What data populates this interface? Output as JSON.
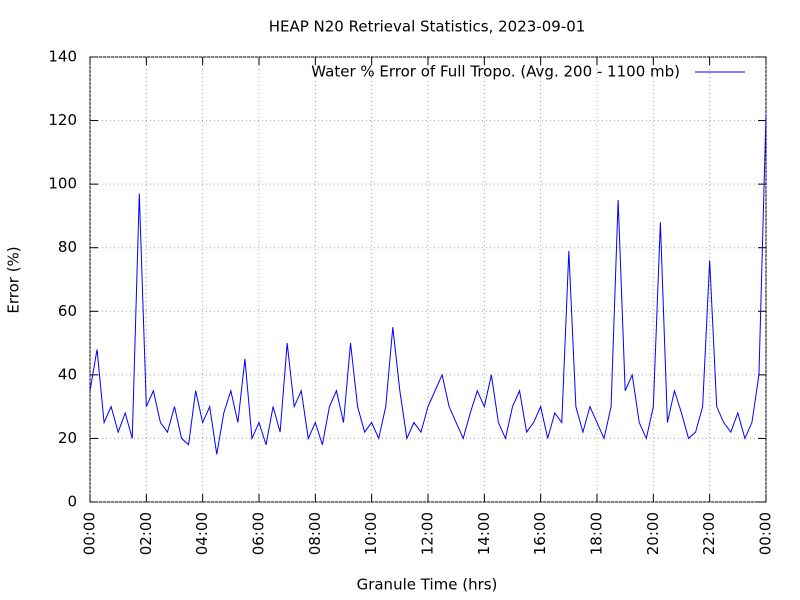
{
  "chart_data": {
    "type": "line",
    "title": "HEAP N20 Retrieval Statistics, 2023-09-01",
    "x_label": "Granule Time (hrs)",
    "y_label": "Error (%)",
    "legend": "top-right",
    "grid": true,
    "xlim": [
      0,
      24
    ],
    "ylim": [
      0,
      140
    ],
    "yticks": [
      0,
      20,
      40,
      60,
      80,
      100,
      120,
      140
    ],
    "xticks": [
      {
        "value": 0,
        "label": "00:00"
      },
      {
        "value": 2,
        "label": "02:00"
      },
      {
        "value": 4,
        "label": "04:00"
      },
      {
        "value": 6,
        "label": "06:00"
      },
      {
        "value": 8,
        "label": "08:00"
      },
      {
        "value": 10,
        "label": "10:00"
      },
      {
        "value": 12,
        "label": "12:00"
      },
      {
        "value": 14,
        "label": "14:00"
      },
      {
        "value": 16,
        "label": "16:00"
      },
      {
        "value": 18,
        "label": "18:00"
      },
      {
        "value": 20,
        "label": "20:00"
      },
      {
        "value": 22,
        "label": "22:00"
      },
      {
        "value": 24,
        "label": "00:00"
      }
    ],
    "x": [
      0,
      0.25,
      0.5,
      0.75,
      1,
      1.25,
      1.5,
      1.75,
      2,
      2.25,
      2.5,
      2.75,
      3,
      3.25,
      3.5,
      3.75,
      4,
      4.25,
      4.5,
      4.75,
      5,
      5.25,
      5.5,
      5.75,
      6,
      6.25,
      6.5,
      6.75,
      7,
      7.25,
      7.5,
      7.75,
      8,
      8.25,
      8.5,
      8.75,
      9,
      9.25,
      9.5,
      9.75,
      10,
      10.25,
      10.5,
      10.75,
      11,
      11.25,
      11.5,
      11.75,
      12,
      12.25,
      12.5,
      12.75,
      13,
      13.25,
      13.5,
      13.75,
      14,
      14.25,
      14.5,
      14.75,
      15,
      15.25,
      15.5,
      15.75,
      16,
      16.25,
      16.5,
      16.75,
      17,
      17.25,
      17.5,
      17.75,
      18,
      18.25,
      18.5,
      18.75,
      19,
      19.25,
      19.5,
      19.75,
      20,
      20.25,
      20.5,
      20.75,
      21,
      21.25,
      21.5,
      21.75,
      22,
      22.25,
      22.5,
      22.75,
      23,
      23.25,
      23.5,
      23.75,
      24
    ],
    "series": [
      {
        "name": "Water % Error of Full Tropo. (Avg. 200 - 1100 mb)",
        "color": "#0000ff",
        "values": [
          35,
          48,
          25,
          30,
          22,
          28,
          20,
          97,
          30,
          35,
          25,
          22,
          30,
          20,
          18,
          35,
          25,
          30,
          15,
          28,
          35,
          25,
          45,
          20,
          25,
          18,
          30,
          22,
          50,
          30,
          35,
          20,
          25,
          18,
          30,
          35,
          25,
          50,
          30,
          22,
          25,
          20,
          30,
          55,
          35,
          20,
          25,
          22,
          30,
          35,
          40,
          30,
          25,
          20,
          28,
          35,
          30,
          40,
          25,
          20,
          30,
          35,
          22,
          25,
          30,
          20,
          28,
          25,
          79,
          30,
          22,
          30,
          25,
          20,
          30,
          95,
          35,
          40,
          25,
          20,
          30,
          88,
          25,
          35,
          28,
          20,
          22,
          30,
          76,
          30,
          25,
          22,
          28,
          20,
          25,
          40,
          122
        ]
      }
    ]
  }
}
